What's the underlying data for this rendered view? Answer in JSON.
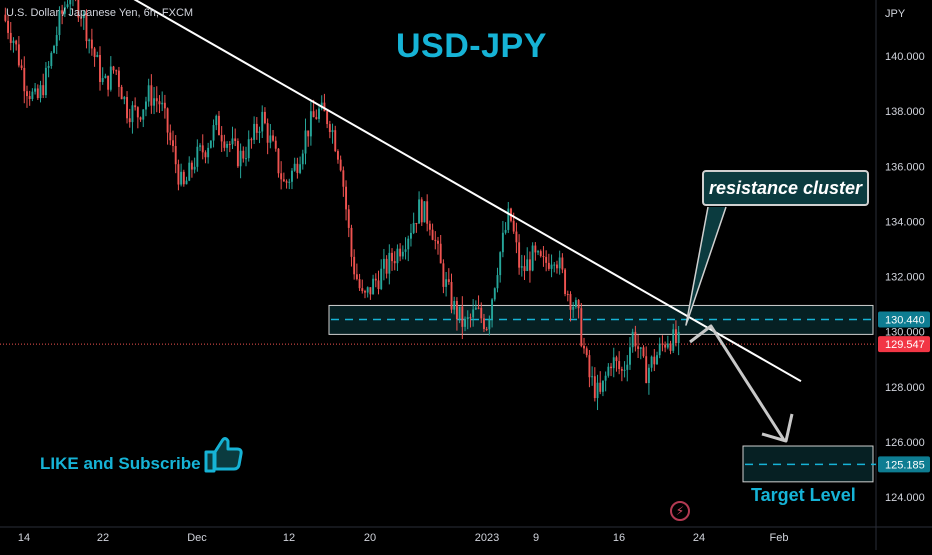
{
  "header": {
    "symbol": "U.S. Dollar / Japanese Yen, 6h, FXCM",
    "title": "USD-JPY",
    "currency": "JPY"
  },
  "annotations": {
    "callout": "resistance cluster",
    "cta": "LIKE and Subscribe",
    "target": "Target Level",
    "flash_icon": "lightning-icon",
    "like_icon": "thumbs-up-icon"
  },
  "colors": {
    "background": "#000000",
    "bull": "#26a69a",
    "bear": "#ef5350",
    "accent": "#16b3d6",
    "zone": "#0b3b3f",
    "line": "#ffffff"
  },
  "chart_data": {
    "type": "candlestick",
    "title": "USD-JPY",
    "xlabel": "",
    "ylabel": "JPY",
    "ylim": [
      123.0,
      143.0
    ],
    "y_ticks": [
      "140.000",
      "138.000",
      "136.000",
      "134.000",
      "132.000",
      "130.000",
      "128.000",
      "126.000",
      "124.000"
    ],
    "x_ticks": [
      "14",
      "22",
      "Dec",
      "12",
      "20",
      "2023",
      "9",
      "16",
      "24",
      "Feb"
    ],
    "price_labels": [
      {
        "text": "130.440",
        "value": 130.44
      },
      {
        "text": "129.547",
        "value": 129.547
      },
      {
        "text": "125.185",
        "value": 125.185
      }
    ],
    "trendline": {
      "from": 142.5,
      "to": 129.0
    },
    "resistance_zone": [
      129.9,
      130.95
    ],
    "target_zone": [
      124.55,
      125.85
    ],
    "current_price": 129.547,
    "path_close": [
      141.5,
      140.6,
      139.0,
      138.3,
      139.4,
      141.2,
      142.4,
      141.6,
      140.2,
      138.9,
      139.6,
      138.1,
      137.9,
      138.6,
      138.3,
      136.7,
      135.1,
      136.2,
      136.7,
      137.5,
      136.9,
      136.3,
      136.8,
      137.8,
      136.6,
      135.3,
      136.0,
      137.3,
      138.0,
      137.7,
      136.2,
      132.6,
      131.1,
      131.8,
      132.3,
      132.9,
      133.6,
      134.5,
      134.0,
      132.1,
      130.9,
      130.2,
      130.7,
      130.3,
      132.6,
      134.3,
      132.1,
      132.7,
      132.4,
      132.9,
      131.6,
      130.7,
      128.4,
      127.6,
      129.0,
      128.5,
      130.0,
      128.5,
      129.1,
      129.8,
      129.55
    ]
  }
}
